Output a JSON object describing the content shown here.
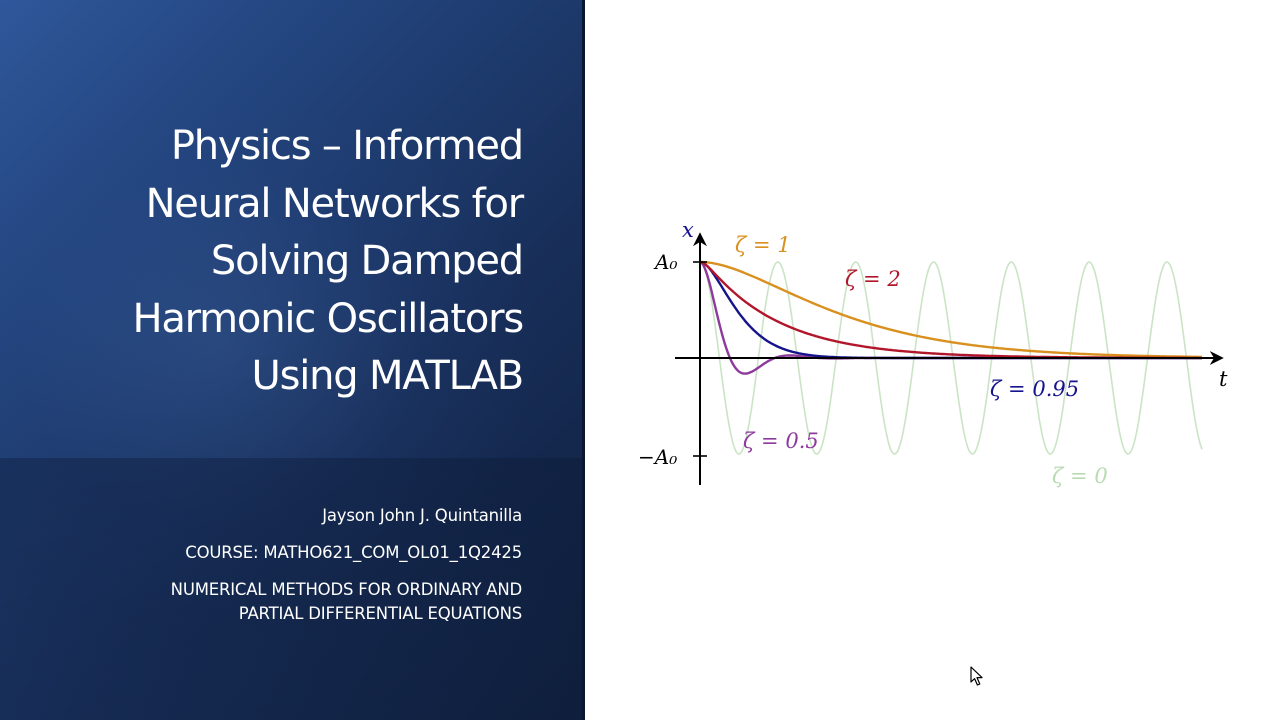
{
  "slide": {
    "title_lines": [
      "Physics – Informed",
      "Neural Networks for",
      "Solving Damped",
      "Harmonic Oscillators",
      "Using MATLAB"
    ],
    "author": "Jayson John J. Quintanilla",
    "course": "COURSE: MATHO621_COM_OL01_1Q2425",
    "subject_lines": [
      "NUMERICAL METHODS FOR ORDINARY AND",
      "PARTIAL DIFFERENTIAL EQUATIONS"
    ]
  },
  "chart_data": {
    "type": "line",
    "xlabel": "t",
    "ylabel": "x",
    "ytick_labels": [
      "A₀",
      "−A₀"
    ],
    "ylim": [
      -1.3,
      1.2
    ],
    "xlim": [
      0,
      6.3
    ],
    "series": [
      {
        "name": "ζ = 0",
        "label": "ζ = 0",
        "zeta": 0,
        "color": "#b9dbb3",
        "opacity": 0.75
      },
      {
        "name": "ζ = 0.5",
        "label": "ζ = 0.5",
        "zeta": 0.5,
        "color": "#8c3a9c",
        "opacity": 1
      },
      {
        "name": "ζ = 0.95",
        "label": "ζ = 0.95",
        "zeta": 0.95,
        "color": "#16148c",
        "opacity": 1
      },
      {
        "name": "ζ = 1",
        "label": "ζ = 1",
        "zeta": 1,
        "color": "#d9901f",
        "opacity": 1
      },
      {
        "name": "ζ = 2",
        "label": "ζ = 2",
        "zeta": 2,
        "color": "#b2162a",
        "opacity": 1
      }
    ],
    "grid": false,
    "legend": "inline labels"
  }
}
